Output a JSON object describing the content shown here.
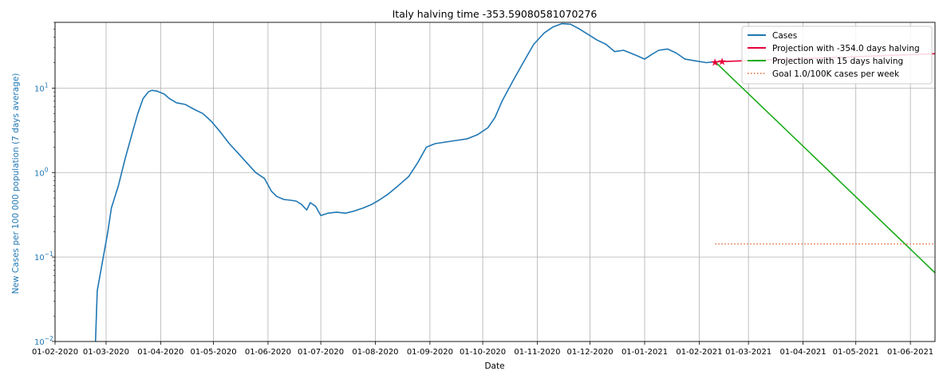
{
  "chart_data": {
    "type": "line",
    "title": "Italy halving time -353.59080581070276",
    "xlabel": "Date",
    "ylabel": "New Cases per 100 000 population (7 days average)",
    "yscale": "log",
    "ylim": [
      0.01,
      60
    ],
    "xlim": [
      "2020-02-01",
      "2021-06-15"
    ],
    "grid": true,
    "legend_position": "top-right",
    "x_tick_labels": [
      "01-02-2020",
      "01-03-2020",
      "01-04-2020",
      "01-05-2020",
      "01-06-2020",
      "01-07-2020",
      "01-08-2020",
      "01-09-2020",
      "01-10-2020",
      "01-11-2020",
      "01-12-2020",
      "01-01-2021",
      "01-02-2021",
      "01-03-2021",
      "01-04-2021",
      "01-05-2021",
      "01-06-2021"
    ],
    "x_tick_dates": [
      "2020-02-01",
      "2020-03-01",
      "2020-04-01",
      "2020-05-01",
      "2020-06-01",
      "2020-07-01",
      "2020-08-01",
      "2020-09-01",
      "2020-10-01",
      "2020-11-01",
      "2020-12-01",
      "2021-01-01",
      "2021-02-01",
      "2021-03-01",
      "2021-04-01",
      "2021-05-01",
      "2021-06-01"
    ],
    "y_ticks": [
      {
        "value": 0.01,
        "base": "10",
        "exp": "−2"
      },
      {
        "value": 0.1,
        "base": "10",
        "exp": "−1"
      },
      {
        "value": 1,
        "base": "10",
        "exp": "0"
      },
      {
        "value": 10,
        "base": "10",
        "exp": "1"
      }
    ],
    "series": [
      {
        "name": "Cases",
        "color": "#1f77b4",
        "style": "solid",
        "points": [
          [
            "2020-02-24",
            0.01
          ],
          [
            "2020-02-25",
            0.04
          ],
          [
            "2020-02-28",
            0.09
          ],
          [
            "2020-03-02",
            0.2
          ],
          [
            "2020-03-04",
            0.38
          ],
          [
            "2020-03-08",
            0.7
          ],
          [
            "2020-03-12",
            1.5
          ],
          [
            "2020-03-16",
            3.0
          ],
          [
            "2020-03-19",
            5.0
          ],
          [
            "2020-03-22",
            7.5
          ],
          [
            "2020-03-25",
            9.0
          ],
          [
            "2020-03-27",
            9.4
          ],
          [
            "2020-03-30",
            9.2
          ],
          [
            "2020-04-03",
            8.5
          ],
          [
            "2020-04-06",
            7.5
          ],
          [
            "2020-04-10",
            6.7
          ],
          [
            "2020-04-15",
            6.4
          ],
          [
            "2020-04-20",
            5.6
          ],
          [
            "2020-04-25",
            5.0
          ],
          [
            "2020-04-30",
            4.0
          ],
          [
            "2020-05-05",
            3.0
          ],
          [
            "2020-05-10",
            2.2
          ],
          [
            "2020-05-15",
            1.7
          ],
          [
            "2020-05-20",
            1.3
          ],
          [
            "2020-05-25",
            1.0
          ],
          [
            "2020-05-30",
            0.85
          ],
          [
            "2020-06-03",
            0.6
          ],
          [
            "2020-06-06",
            0.52
          ],
          [
            "2020-06-10",
            0.48
          ],
          [
            "2020-06-14",
            0.47
          ],
          [
            "2020-06-17",
            0.46
          ],
          [
            "2020-06-20",
            0.42
          ],
          [
            "2020-06-23",
            0.36
          ],
          [
            "2020-06-25",
            0.44
          ],
          [
            "2020-06-28",
            0.4
          ],
          [
            "2020-07-01",
            0.31
          ],
          [
            "2020-07-05",
            0.33
          ],
          [
            "2020-07-10",
            0.34
          ],
          [
            "2020-07-15",
            0.33
          ],
          [
            "2020-07-20",
            0.35
          ],
          [
            "2020-07-25",
            0.38
          ],
          [
            "2020-07-30",
            0.42
          ],
          [
            "2020-08-03",
            0.47
          ],
          [
            "2020-08-08",
            0.55
          ],
          [
            "2020-08-14",
            0.7
          ],
          [
            "2020-08-20",
            0.9
          ],
          [
            "2020-08-25",
            1.3
          ],
          [
            "2020-08-30",
            2.0
          ],
          [
            "2020-09-04",
            2.2
          ],
          [
            "2020-09-10",
            2.3
          ],
          [
            "2020-09-16",
            2.4
          ],
          [
            "2020-09-22",
            2.5
          ],
          [
            "2020-09-28",
            2.8
          ],
          [
            "2020-10-04",
            3.4
          ],
          [
            "2020-10-08",
            4.5
          ],
          [
            "2020-10-12",
            7.0
          ],
          [
            "2020-10-18",
            12.0
          ],
          [
            "2020-10-24",
            20.0
          ],
          [
            "2020-10-30",
            33.0
          ],
          [
            "2020-11-05",
            45.0
          ],
          [
            "2020-11-10",
            53.0
          ],
          [
            "2020-11-15",
            58.0
          ],
          [
            "2020-11-20",
            57.0
          ],
          [
            "2020-11-25",
            50.0
          ],
          [
            "2020-11-30",
            43.0
          ],
          [
            "2020-12-05",
            37.0
          ],
          [
            "2020-12-10",
            33.0
          ],
          [
            "2020-12-15",
            27.0
          ],
          [
            "2020-12-20",
            28.0
          ],
          [
            "2020-12-24",
            26.0
          ],
          [
            "2020-12-28",
            24.0
          ],
          [
            "2021-01-01",
            22.0
          ],
          [
            "2021-01-05",
            25.0
          ],
          [
            "2021-01-09",
            28.0
          ],
          [
            "2021-01-14",
            29.0
          ],
          [
            "2021-01-19",
            26.0
          ],
          [
            "2021-01-24",
            22.0
          ],
          [
            "2021-01-30",
            21.0
          ],
          [
            "2021-02-05",
            20.0
          ],
          [
            "2021-02-10",
            20.5
          ]
        ]
      },
      {
        "name": "Projection with -354.0 days halving",
        "color": "#e6003a",
        "style": "solid",
        "points": [
          [
            "2021-02-10",
            20.5
          ],
          [
            "2021-02-20",
            20.8
          ],
          [
            "2021-03-10",
            21.5
          ],
          [
            "2021-04-10",
            22.7
          ],
          [
            "2021-05-10",
            23.9
          ],
          [
            "2021-06-15",
            25.5
          ]
        ]
      },
      {
        "name": "Projection with 15 days halving",
        "color": "#1aab1a",
        "style": "solid",
        "points": [
          [
            "2021-02-10",
            20.5
          ],
          [
            "2021-06-15",
            0.065
          ]
        ]
      },
      {
        "name": "Goal 1.0/100K cases per week",
        "color": "#e06a3a",
        "style": "dotted",
        "points": [
          [
            "2021-02-10",
            0.143
          ],
          [
            "2021-06-15",
            0.143
          ]
        ]
      }
    ],
    "markers": [
      {
        "date": "2021-02-10",
        "value": 20.5,
        "symbol": "*",
        "color": "#e6003a"
      },
      {
        "date": "2021-02-14",
        "value": 20.8,
        "symbol": "*",
        "color": "#e6003a"
      }
    ]
  }
}
